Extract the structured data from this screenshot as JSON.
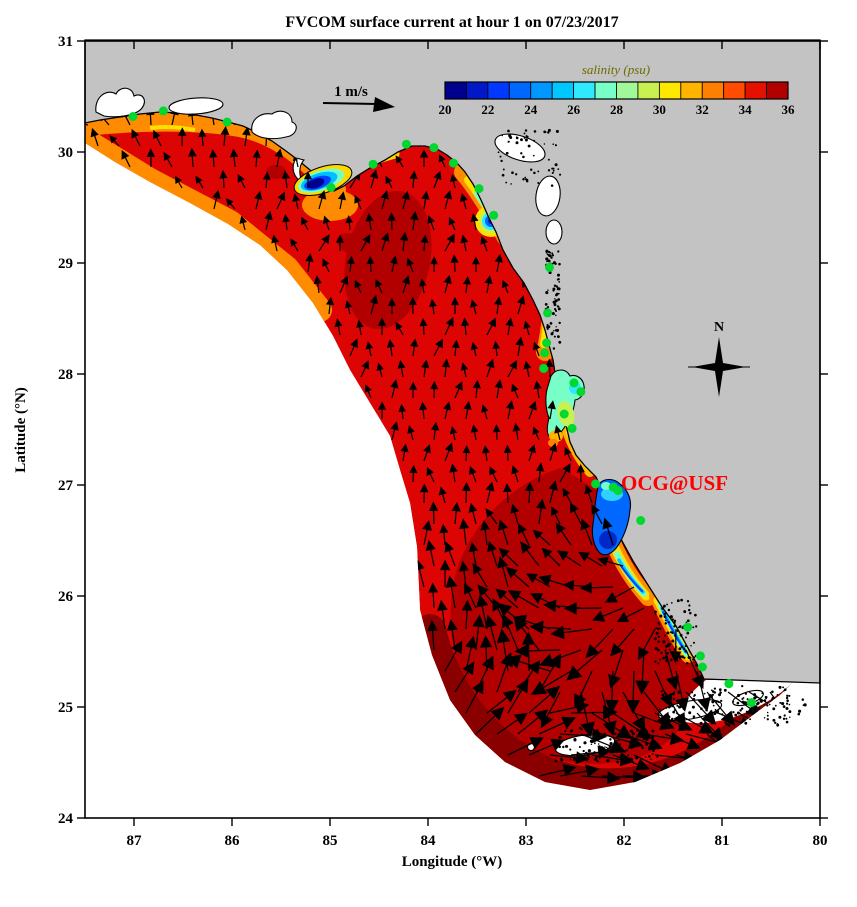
{
  "palette": {
    "land_gray": "#c3c3c3",
    "sea_red": "#dd0404",
    "sea_dark": "#b20000",
    "sea_darkest": "#8a0000",
    "sea_orange": "#ff8c00",
    "sea_orange_red": "#ff5000",
    "sea_yellow": "#ffe000",
    "station_green": "#00d830",
    "annotation_red": "#ff0000",
    "cb_label": "#6b6b00",
    "vector_black": "#000000"
  },
  "chart_data": {
    "type": "map-quiver",
    "title": "FVCOM surface current at hour 1 on 07/23/2017",
    "xlabel": "Longitude (°W)",
    "ylabel": "Latitude (°N)",
    "x_axis": {
      "unit": "°W",
      "range": [
        87.5,
        80
      ]
    },
    "y_axis": {
      "unit": "°N",
      "range": [
        24,
        31
      ]
    },
    "x_ticks": [
      87,
      86,
      85,
      84,
      83,
      82,
      81,
      80
    ],
    "y_ticks": [
      24,
      25,
      26,
      27,
      28,
      29,
      30,
      31
    ],
    "colorbar": {
      "label": "salinity (psu)",
      "min": 20,
      "max": 36,
      "ticks": [
        20,
        22,
        24,
        26,
        28,
        30,
        32,
        34,
        36
      ],
      "colors": [
        "#00008f",
        "#0018c8",
        "#0038ff",
        "#0068ff",
        "#0098ff",
        "#00c8ff",
        "#30e8ff",
        "#78ffc8",
        "#a0f898",
        "#c8f050",
        "#ffe800",
        "#ffb400",
        "#ff8000",
        "#ff4c00",
        "#e41000",
        "#b00000"
      ]
    },
    "scale_arrow_label": "1 m/s",
    "compass_label": "N",
    "annotation": {
      "text": "OCG@USF"
    },
    "stations": [
      [
        87.01,
        30.32
      ],
      [
        86.7,
        30.37
      ],
      [
        86.05,
        30.27
      ],
      [
        84.99,
        29.68
      ],
      [
        84.56,
        29.89
      ],
      [
        84.22,
        30.07
      ],
      [
        83.94,
        30.04
      ],
      [
        83.74,
        29.9
      ],
      [
        83.48,
        29.67
      ],
      [
        83.33,
        29.43
      ],
      [
        82.76,
        28.96
      ],
      [
        82.78,
        28.55
      ],
      [
        82.79,
        28.28
      ],
      [
        82.81,
        28.19
      ],
      [
        82.82,
        28.05
      ],
      [
        82.51,
        27.92
      ],
      [
        82.44,
        27.84
      ],
      [
        82.61,
        27.64
      ],
      [
        82.53,
        27.51
      ],
      [
        82.29,
        27.01
      ],
      [
        82.11,
        26.98
      ],
      [
        82.06,
        26.95
      ],
      [
        81.83,
        26.68
      ],
      [
        81.35,
        25.72
      ],
      [
        81.22,
        25.46
      ],
      [
        81.2,
        25.36
      ],
      [
        80.93,
        25.21
      ],
      [
        80.7,
        25.04
      ]
    ]
  }
}
